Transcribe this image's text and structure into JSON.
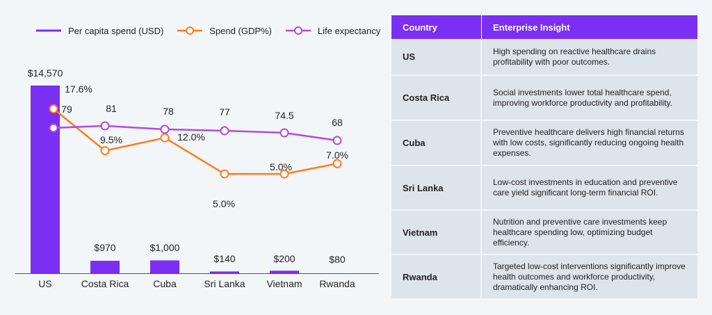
{
  "legend": {
    "per_capita": "Per capita spend (USD)",
    "gdp": "Spend (GDP%)",
    "life": "Life expectancy"
  },
  "colors": {
    "per_capita": "#7b2ff2",
    "gdp": "#ff7a1a",
    "life": "#b24bdb",
    "table_header": "#7b2ff2",
    "table_row": "#dde4ea"
  },
  "chart_data": {
    "type": "bar",
    "categories": [
      "US",
      "Costa Rica",
      "Cuba",
      "Sri Lanka",
      "Vietnam",
      "Rwanda"
    ],
    "series": [
      {
        "name": "Per capita spend (USD)",
        "type": "bar",
        "values": [
          14570,
          970,
          1000,
          140,
          200,
          80
        ],
        "labels": [
          "$14,570",
          "$970",
          "$1,000",
          "$140",
          "$200",
          "$80"
        ]
      },
      {
        "name": "Spend (GDP%)",
        "type": "line",
        "values": [
          17.6,
          9.5,
          12.0,
          5.0,
          5.0,
          7.0
        ],
        "labels": [
          "17.6%",
          "9.5%",
          "12.0%",
          "5.0%",
          "5.0%",
          "7.0%"
        ]
      },
      {
        "name": "Life expectancy",
        "type": "line",
        "values": [
          79,
          81,
          78,
          77,
          74.5,
          68
        ],
        "labels": [
          "79",
          "81",
          "78",
          "77",
          "74.5",
          "68"
        ]
      }
    ],
    "title": "",
    "xlabel": "",
    "ylabel": "",
    "grid": false,
    "legend_position": "top-left"
  },
  "table": {
    "headers": [
      "Country",
      "Enterprise Insight"
    ],
    "rows": [
      {
        "country": "US",
        "insight": "High spending on reactive healthcare drains profitability with poor outcomes."
      },
      {
        "country": "Costa Rica",
        "insight": "Social investments lower total healthcare spend, improving workforce productivity and profitability."
      },
      {
        "country": "Cuba",
        "insight": "Preventive healthcare delivers high financial returns with low costs, significantly reducing ongoing health expenses."
      },
      {
        "country": "Sri Lanka",
        "insight": "Low-cost investments in education and preventive care yield significant long-term financial ROI."
      },
      {
        "country": "Vietnam",
        "insight": "Nutrition and preventive care investments keep healthcare spending low, optimizing budget efficiency."
      },
      {
        "country": "Rwanda",
        "insight": "Targeted low-cost interventions significantly improve health outcomes and workforce productivity, dramatically enhancing ROI."
      }
    ]
  }
}
